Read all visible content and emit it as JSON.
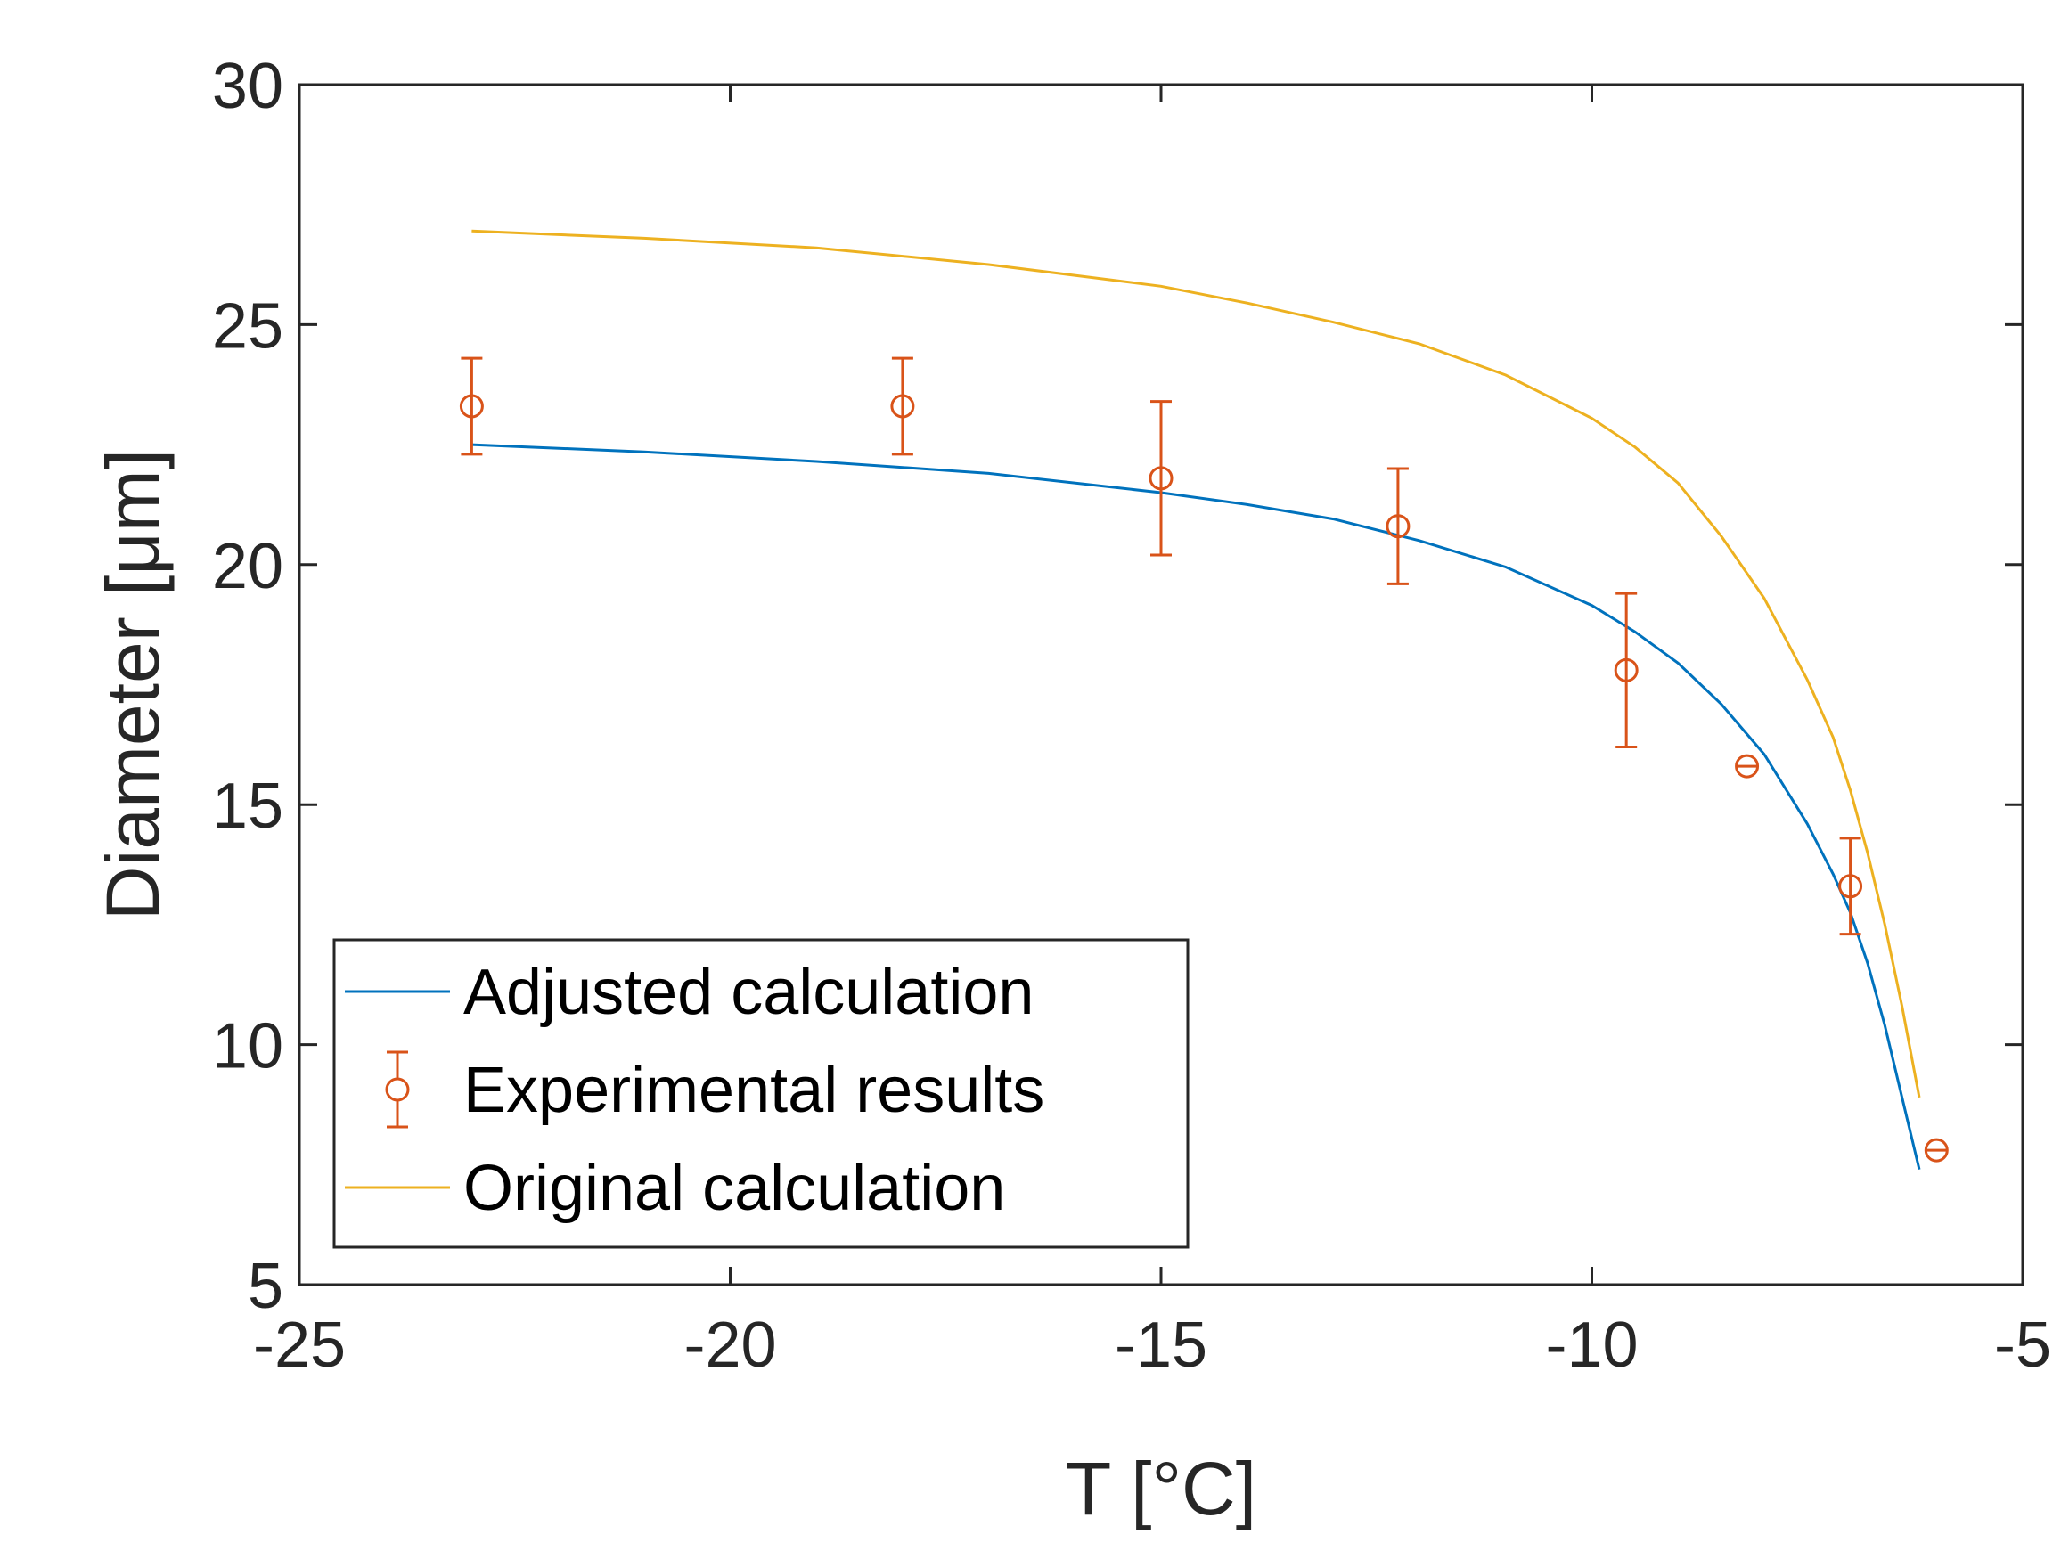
{
  "chart_data": {
    "type": "line",
    "title": "",
    "xlabel": "T [°C]",
    "ylabel": "Diameter [μm]",
    "xlim": [
      -25,
      -5
    ],
    "ylim": [
      5,
      30
    ],
    "grid": false,
    "legend_position": "bottom-left",
    "x_ticks": [
      -25,
      -20,
      -15,
      -10,
      -5
    ],
    "y_ticks": [
      5,
      10,
      15,
      20,
      25,
      30
    ],
    "x_tick_labels": [
      "-25",
      "-20",
      "-15",
      "-10",
      "-5"
    ],
    "y_tick_labels": [
      "5",
      "10",
      "15",
      "20",
      "25",
      "30"
    ],
    "series": [
      {
        "name": "Adjusted calculation",
        "kind": "line",
        "color": "#0072BD",
        "x": [
          -23.0,
          -21.0,
          -19.0,
          -17.0,
          -15.0,
          -14.0,
          -13.0,
          -12.0,
          -11.0,
          -10.0,
          -9.5,
          -9.0,
          -8.5,
          -8.0,
          -7.5,
          -7.2,
          -7.0,
          -6.8,
          -6.6,
          -6.4,
          -6.2
        ],
        "y": [
          22.5,
          22.35,
          22.15,
          21.9,
          21.5,
          21.25,
          20.95,
          20.5,
          19.95,
          19.15,
          18.6,
          17.95,
          17.1,
          16.05,
          14.6,
          13.55,
          12.75,
          11.7,
          10.4,
          8.9,
          7.4
        ]
      },
      {
        "name": "Experimental results",
        "kind": "errorbar",
        "color": "#D95319",
        "x": [
          -23.0,
          -18.0,
          -15.0,
          -12.25,
          -9.6,
          -8.2,
          -7.0,
          -6.0
        ],
        "y": [
          23.3,
          23.3,
          21.8,
          20.8,
          17.8,
          15.8,
          13.3,
          7.8
        ],
        "err": [
          1.0,
          1.0,
          1.6,
          1.2,
          1.6,
          0.0,
          1.0,
          0.0
        ]
      },
      {
        "name": "Original calculation",
        "kind": "line",
        "color": "#EDB120",
        "x": [
          -23.0,
          -21.0,
          -19.0,
          -17.0,
          -15.0,
          -14.0,
          -13.0,
          -12.0,
          -11.0,
          -10.0,
          -9.5,
          -9.0,
          -8.5,
          -8.0,
          -7.5,
          -7.2,
          -7.0,
          -6.8,
          -6.6,
          -6.4,
          -6.2
        ],
        "y": [
          26.95,
          26.8,
          26.6,
          26.25,
          25.8,
          25.45,
          25.05,
          24.6,
          23.95,
          23.05,
          22.45,
          21.7,
          20.6,
          19.3,
          17.6,
          16.4,
          15.3,
          14.0,
          12.5,
          10.8,
          8.9
        ]
      }
    ]
  }
}
